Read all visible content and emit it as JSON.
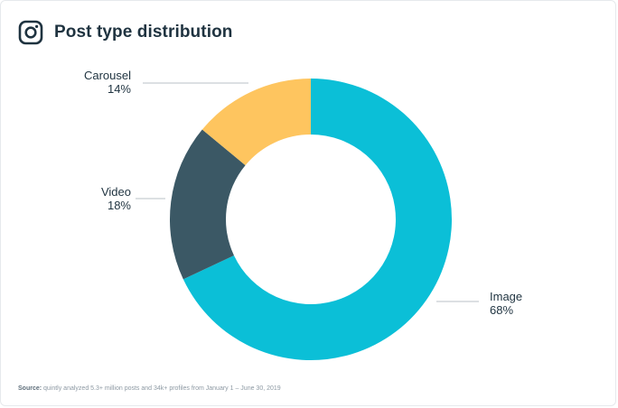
{
  "header": {
    "title": "Post type distribution",
    "icon": "instagram-icon"
  },
  "chart_data": {
    "type": "pie",
    "donut": true,
    "title": "Post type distribution",
    "slices": [
      {
        "label": "Image",
        "value": 68,
        "display": "68%",
        "color": "#0bbfd7"
      },
      {
        "label": "Video",
        "value": 18,
        "display": "18%",
        "color": "#3b5865"
      },
      {
        "label": "Carousel",
        "value": 14,
        "display": "14%",
        "color": "#fec55f"
      }
    ],
    "legend": "none"
  },
  "footer": {
    "source_label": "Source:",
    "source_text": " quintly analyzed 5.3+ million posts and 34k+ profiles from January 1 – June 30, 2019"
  }
}
